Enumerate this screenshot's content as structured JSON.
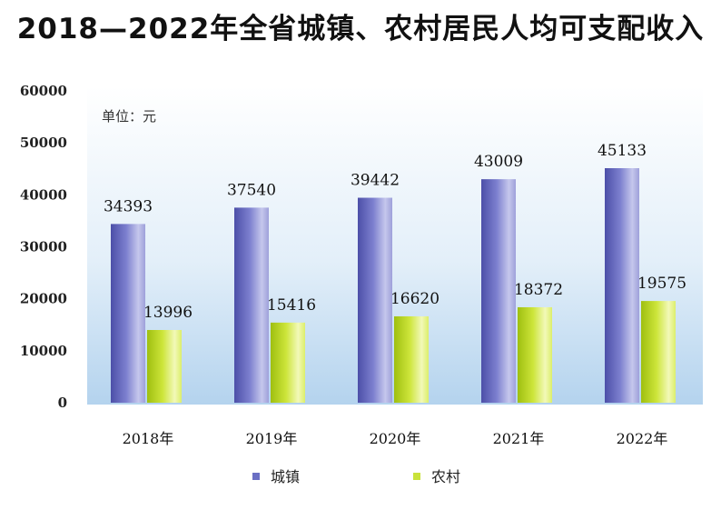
{
  "chart_data": {
    "type": "bar",
    "title": "2018—2022年全省城镇、农村居民人均可支配收入",
    "unit_label": "单位：元",
    "categories": [
      "2018年",
      "2019年",
      "2020年",
      "2021年",
      "2022年"
    ],
    "series": [
      {
        "name": "城镇",
        "values": [
          34393,
          37540,
          39442,
          43009,
          45133
        ],
        "color": "#6a6fc4"
      },
      {
        "name": "农村",
        "values": [
          13996,
          15416,
          16620,
          18372,
          19575
        ],
        "color": "#c9e23a"
      }
    ],
    "ylim": [
      0,
      60000
    ],
    "yticks": [
      "0",
      "10000",
      "20000",
      "30000",
      "40000",
      "50000",
      "60000"
    ],
    "legend_position": "bottom-center",
    "grid": false
  }
}
